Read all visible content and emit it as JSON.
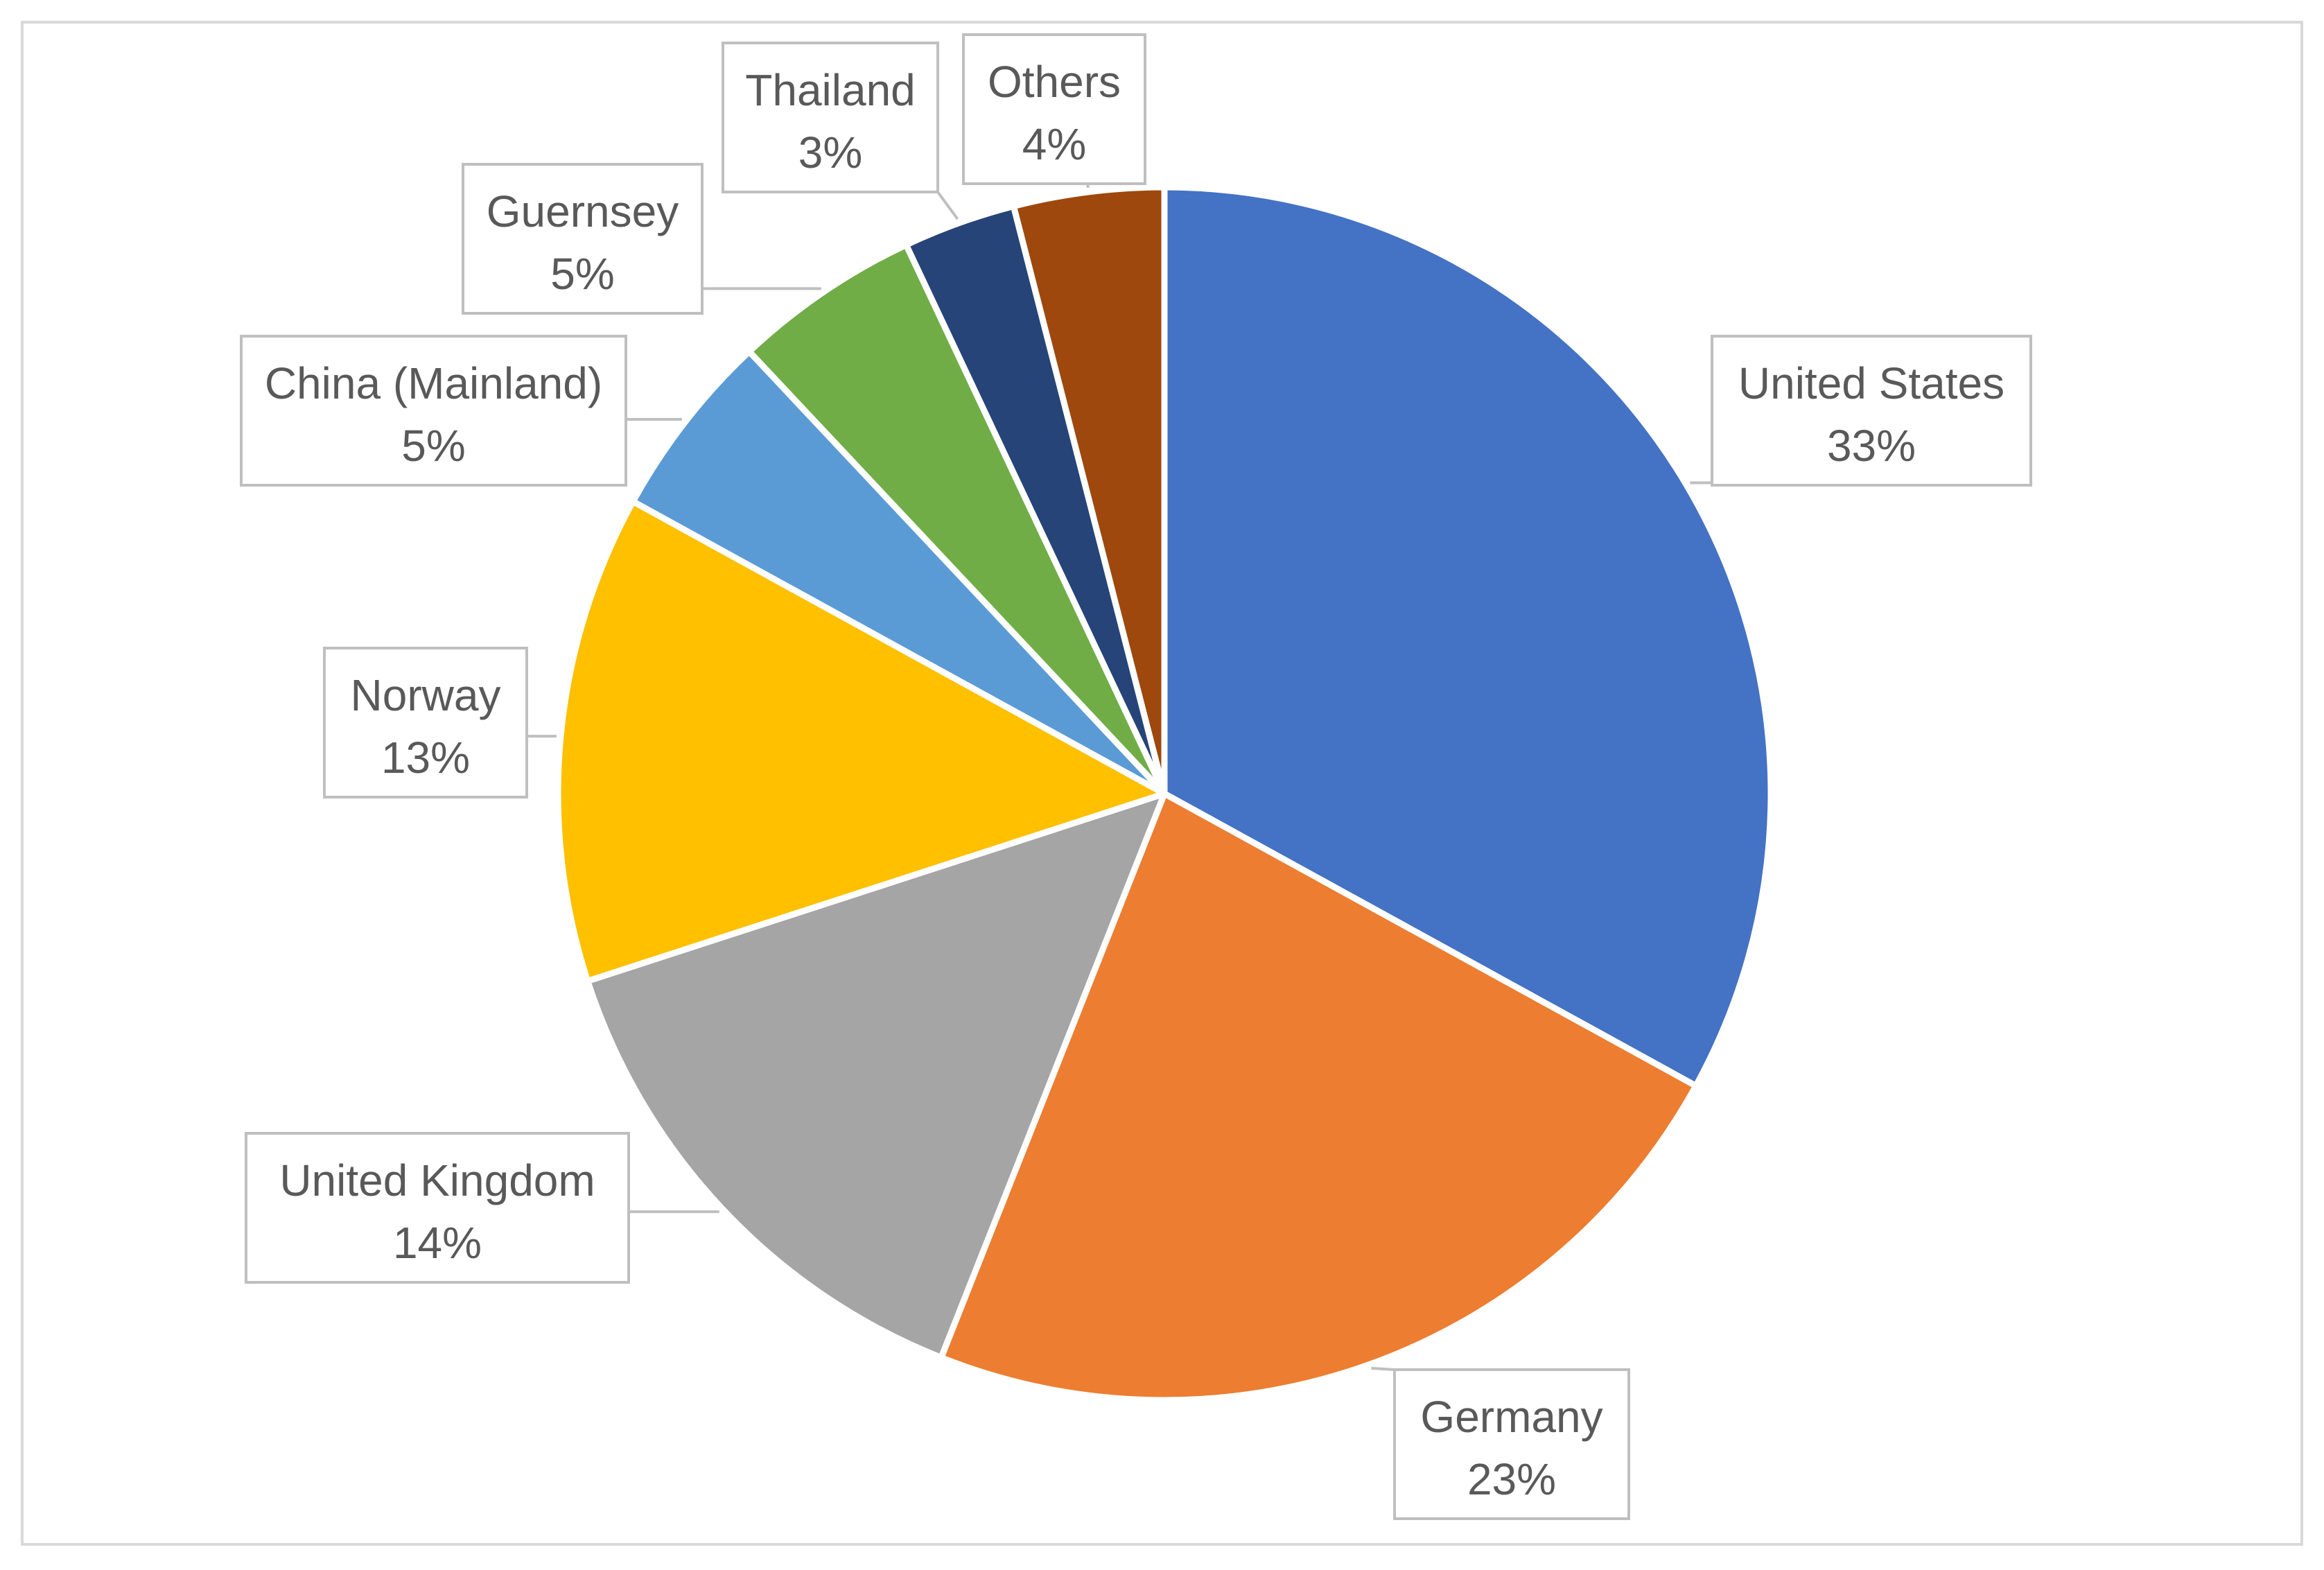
{
  "chart_data": {
    "type": "pie",
    "title": "",
    "start_angle_deg": 0,
    "direction": "clockwise",
    "slices": [
      {
        "label": "United States",
        "value": 33,
        "display": "33%",
        "color": "#4472C4"
      },
      {
        "label": "Germany",
        "value": 23,
        "display": "23%",
        "color": "#ED7D31"
      },
      {
        "label": "United Kingdom",
        "value": 14,
        "display": "14%",
        "color": "#A5A5A5"
      },
      {
        "label": "Norway",
        "value": 13,
        "display": "13%",
        "color": "#FFC000"
      },
      {
        "label": "China (Mainland)",
        "value": 5,
        "display": "5%",
        "color": "#5B9BD5"
      },
      {
        "label": "Guernsey",
        "value": 5,
        "display": "5%",
        "color": "#70AD47"
      },
      {
        "label": "Thailand",
        "value": 3,
        "display": "3%",
        "color": "#264478"
      },
      {
        "label": "Others",
        "value": 4,
        "display": "4%",
        "color": "#9E480E"
      }
    ],
    "legend": "none",
    "data_labels": "callouts"
  }
}
